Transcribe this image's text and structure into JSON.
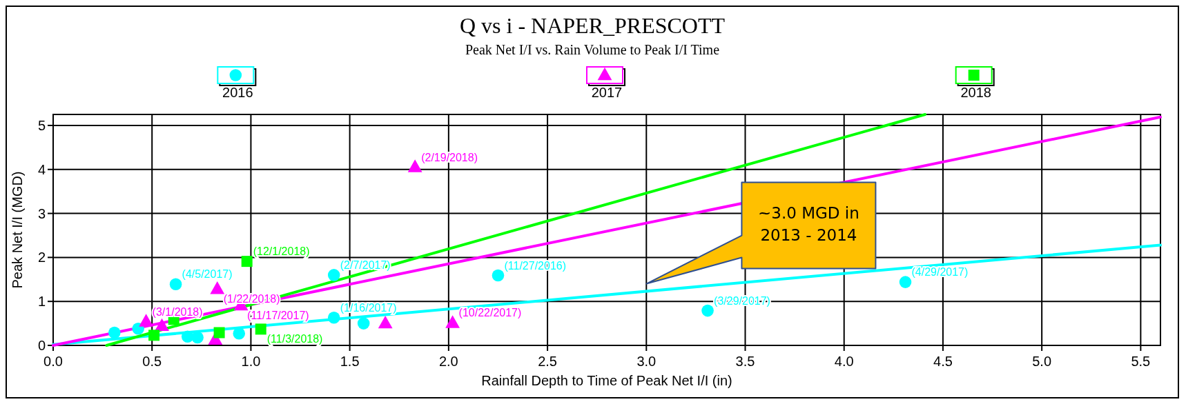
{
  "chart_data": {
    "type": "scatter",
    "title": "Q vs i - NAPER_PRESCOTT",
    "subtitle": "Peak Net I/I vs. Rain Volume to Peak I/I Time",
    "xlabel": "Rainfall Depth to Time of Peak Net I/I (in)",
    "ylabel": "Peak Net I/I (MGD)",
    "xlim": [
      0,
      5.6
    ],
    "ylim": [
      0,
      5.25
    ],
    "xticks": [
      {
        "value": 0,
        "label": "0.0"
      },
      0.5,
      {
        "value": 1,
        "label": "1.0"
      },
      1.5,
      {
        "value": 2,
        "label": "2.0"
      },
      2.5,
      {
        "value": 3,
        "label": "3.0"
      },
      3.5,
      {
        "value": 4,
        "label": "4.0"
      },
      4.5,
      {
        "value": 5,
        "label": "5.0"
      },
      5.5
    ],
    "yticks": [
      0,
      1,
      2,
      3,
      4,
      5
    ],
    "grid": true,
    "legend": "top",
    "series": [
      {
        "name": "2016",
        "color": "#00ffff",
        "marker": "circle",
        "x": [
          0.31,
          0.43,
          0.62,
          0.68,
          0.73,
          0.94,
          1.42,
          1.42,
          1.57,
          2.25,
          3.31,
          4.31
        ],
        "values": [
          0.29,
          0.38,
          1.39,
          0.2,
          0.18,
          0.27,
          1.6,
          0.63,
          0.5,
          1.59,
          0.79,
          1.44
        ],
        "value_labels": [
          null,
          null,
          "(4/5/2017)",
          null,
          null,
          null,
          "(2/7/2017)",
          "(1/16/2017)",
          null,
          "(11/27/2016)",
          "(3/29/2017)",
          "(4/29/2017)"
        ]
      },
      {
        "name": "2017",
        "color": "#ff00ff",
        "marker": "triangle",
        "x": [
          0.47,
          0.55,
          0.82,
          0.83,
          0.95,
          1.68,
          1.83,
          2.02
        ],
        "values": [
          0.54,
          0.44,
          0.13,
          1.28,
          0.91,
          0.5,
          4.05,
          0.51
        ],
        "value_labels": [
          "(3/1/2018)",
          null,
          null,
          "(1/22/2018)",
          "(11/17/2017)",
          null,
          "(2/19/2018)",
          "(10/22/2017)"
        ]
      },
      {
        "name": "2018",
        "color": "#00ff00",
        "marker": "square",
        "x": [
          0.51,
          0.61,
          0.84,
          0.98,
          1.05
        ],
        "values": [
          0.23,
          0.59,
          0.29,
          1.91,
          0.37
        ],
        "value_labels": [
          null,
          null,
          null,
          "(12/1/2018)",
          "(11/3/2018)"
        ]
      },
      {
        "type": "line",
        "color": "#00ffff",
        "x": [
          0,
          5.6
        ],
        "values": [
          0.02,
          2.28
        ]
      },
      {
        "type": "line",
        "color": "#ff00ff",
        "x": [
          0,
          5.6
        ],
        "values": [
          0,
          5.19
        ]
      },
      {
        "type": "line",
        "color": "#00ff00",
        "x": [
          0.27,
          4.41
        ],
        "values": [
          0,
          5.25
        ]
      }
    ],
    "annotations": [
      "~3.0 MGD in\n2013 - 2014"
    ]
  }
}
